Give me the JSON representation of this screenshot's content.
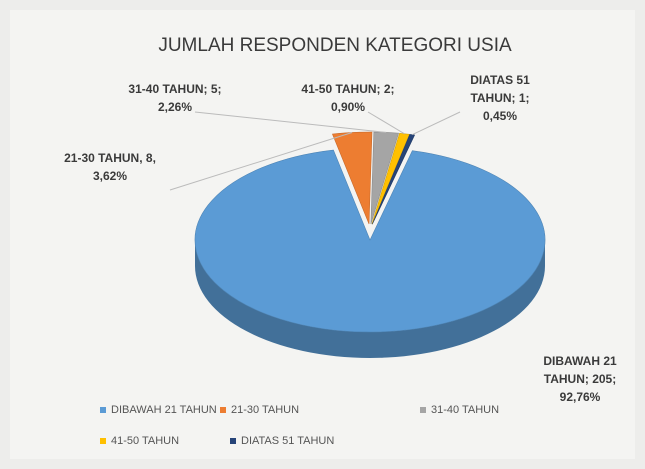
{
  "chart_data": {
    "type": "pie3d",
    "title": "JUMLAH RESPONDEN KATEGORI USIA",
    "categories": [
      "DIBAWAH 21 TAHUN",
      "21-30 TAHUN",
      "31-40 TAHUN",
      "41-50 TAHUN",
      "DIATAS 51 TAHUN"
    ],
    "values": [
      205,
      8,
      5,
      2,
      1
    ],
    "value_labels": [
      [
        "DIBAWAH 21",
        "TAHUN; 205;",
        "92,76%"
      ],
      [
        "21-30 TAHUN, 8,",
        "3,62%"
      ],
      [
        "31-40 TAHUN; 5;",
        "2,26%"
      ],
      [
        "41-50 TAHUN; 2;",
        "0,90%"
      ],
      [
        "DIATAS 51",
        "TAHUN; 1;",
        "0,45%"
      ]
    ],
    "colors": [
      "#5b9bd5",
      "#ed7d31",
      "#a5a5a5",
      "#ffc000",
      "#264478"
    ],
    "legend": "bottom"
  }
}
